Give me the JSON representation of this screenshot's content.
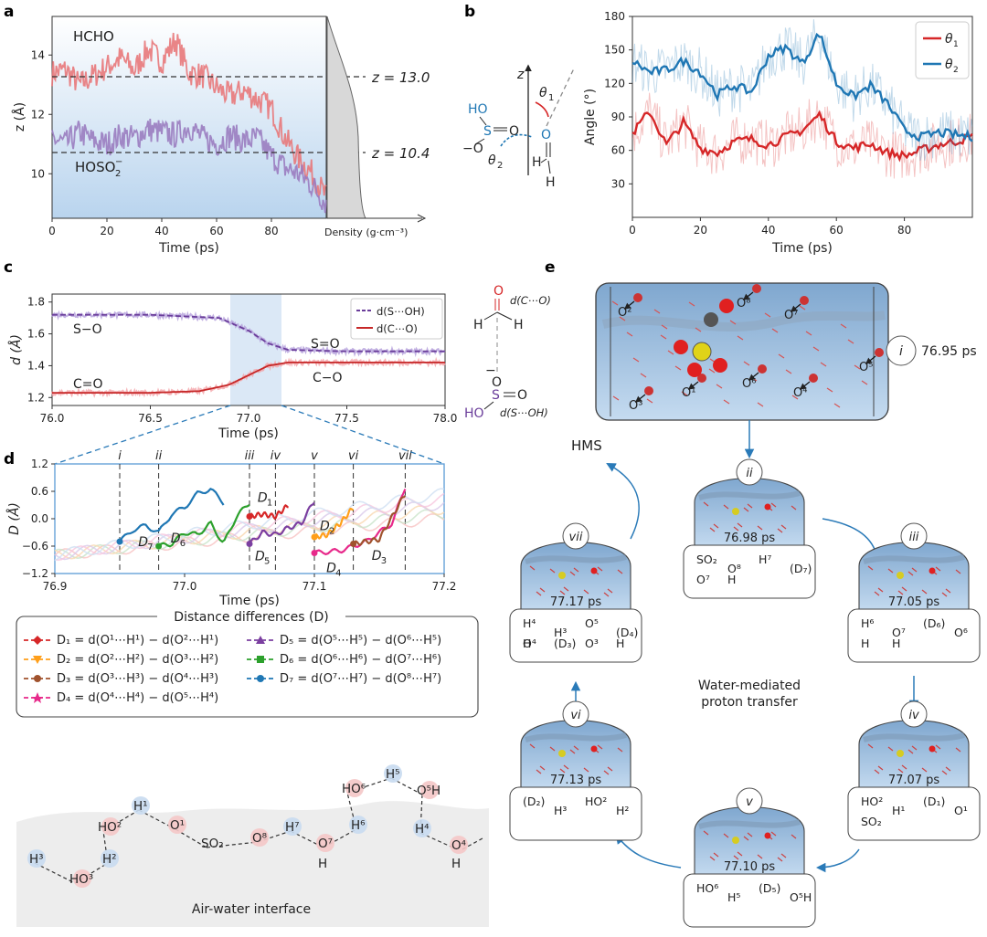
{
  "colors": {
    "hcho": "#e8787a",
    "hoso2": "#9a7cc0",
    "theta1": "#d62728",
    "theta2": "#1f77b4",
    "band_blue": "#c7ddf2",
    "ring_pink": "#f4c6c6",
    "ring_blue": "#c8daef",
    "arrow_blue": "#2a7ab8",
    "interface_gray": "#ededed"
  },
  "panel_labels": [
    "a",
    "b",
    "c",
    "d",
    "e"
  ],
  "panel_a": {
    "ylabel": "z (Å)",
    "xlabel": "Time (ps)",
    "density_label": "Density (g·cm⁻³)",
    "yticks": [
      "10",
      "12",
      "14"
    ],
    "xticks": [
      "0",
      "20",
      "40",
      "60",
      "80"
    ],
    "label_hcho": "HCHO",
    "label_hoso2": "HOSO",
    "label_hoso2_sub": "2",
    "label_hoso2_sup": "−",
    "z_high": "z = 13.0",
    "z_low": "z = 10.4"
  },
  "panel_b_scheme": {
    "atoms": [
      "HO",
      "S",
      "O",
      "−O",
      "O",
      "H",
      "H"
    ],
    "axis": "z",
    "theta1": "θ",
    "theta1_sub": "1",
    "theta2": "θ",
    "theta2_sub": "2"
  },
  "panel_b": {
    "ylabel": "Angle (°)",
    "xlabel": "Time (ps)",
    "yticks": [
      "30",
      "60",
      "90",
      "120",
      "150",
      "180"
    ],
    "xticks": [
      "0",
      "20",
      "40",
      "60",
      "80"
    ],
    "legend": [
      {
        "name": "θ",
        "sub": "1"
      },
      {
        "name": "θ",
        "sub": "2"
      }
    ]
  },
  "panel_c": {
    "ylabel": "d (Å)",
    "xlabel": "Time (ps)",
    "yticks": [
      "1.2",
      "1.4",
      "1.6",
      "1.8"
    ],
    "xticks": [
      "76.0",
      "76.5",
      "77.0",
      "77.5",
      "78.0"
    ],
    "legend": [
      "d(S⋯OH)",
      "d(C⋯O)"
    ],
    "annotations": [
      "S−O",
      "S=O",
      "C=O",
      "C−O"
    ],
    "scheme_labels": [
      "d(C⋯O)",
      "d(S⋯OH)"
    ],
    "scheme_atoms": [
      "O",
      "H",
      "H",
      "O",
      "−",
      "S",
      "O",
      "HO"
    ]
  },
  "panel_d": {
    "ylabel": "D (Å)",
    "xlabel": "Time (ps)",
    "yticks": [
      "−1.2",
      "−0.6",
      "0.0",
      "0.6",
      "1.2"
    ],
    "xticks": [
      "76.9",
      "77.0",
      "77.1",
      "77.2"
    ],
    "event_labels": [
      "i",
      "ii",
      "iii",
      "iv",
      "v",
      "vi",
      "vii"
    ],
    "curve_labels": [
      {
        "base": "D",
        "sub": "7"
      },
      {
        "base": "D",
        "sub": "6"
      },
      {
        "base": "D",
        "sub": "1"
      },
      {
        "base": "D",
        "sub": "5"
      },
      {
        "base": "D",
        "sub": "2"
      },
      {
        "base": "D",
        "sub": "4"
      },
      {
        "base": "D",
        "sub": "3"
      }
    ]
  },
  "legend_box": {
    "title": "Distance differences (D)",
    "entries": [
      {
        "lhs": "D₁ = d(O¹⋯H¹) − d(O²⋯H¹)",
        "color": "#d62728",
        "marker": "diamond"
      },
      {
        "lhs": "D₂ = d(O²⋯H²) − d(O³⋯H²)",
        "color": "#ff9f1a",
        "marker": "tri-down"
      },
      {
        "lhs": "D₃ = d(O³⋯H³) − d(O⁴⋯H³)",
        "color": "#a0522d",
        "marker": "circle"
      },
      {
        "lhs": "D₄ = d(O⁴⋯H⁴) − d(O⁵⋯H⁴)",
        "color": "#e7298a",
        "marker": "star"
      },
      {
        "lhs": "D₅ = d(O⁵⋯H⁵) − d(O⁶⋯H⁵)",
        "color": "#7b3fa0",
        "marker": "tri-up"
      },
      {
        "lhs": "D₆ = d(O⁶⋯H⁶) − d(O⁷⋯H⁶)",
        "color": "#2ca02c",
        "marker": "square"
      },
      {
        "lhs": "D₇ = d(O⁷⋯H⁷) − d(O⁸⋯H⁷)",
        "color": "#1f77b4",
        "marker": "circle"
      }
    ]
  },
  "interface_scheme": {
    "title": "Air-water interface",
    "nodes": [
      "H³",
      "HO³",
      "H²",
      "HO²",
      "H¹",
      "O¹",
      "SO₂",
      "O⁸",
      "H⁷",
      "O⁷",
      "H",
      "H⁶",
      "HO⁶",
      "H⁵",
      "O⁵H",
      "H⁴",
      "O⁴",
      "H"
    ]
  },
  "panel_e": {
    "main_label": "i",
    "main_time": "76.95 ps",
    "main_atoms": [
      "O²",
      "O⁸",
      "O⁷",
      "O¹",
      "O³",
      "O⁶",
      "O⁵",
      "O⁴"
    ],
    "hms": "HMS",
    "center_text": [
      "Water-mediated",
      "proton transfer"
    ],
    "snapshots": [
      {
        "id": "ii",
        "time": "76.98 ps",
        "scheme": [
          "SO₂",
          "O⁸",
          "H⁷",
          "(D₇)",
          "O⁷",
          "H"
        ]
      },
      {
        "id": "iii",
        "time": "77.05 ps",
        "scheme": [
          "H⁶",
          "O⁷",
          "(D₆)",
          "O⁶",
          "H",
          "H"
        ]
      },
      {
        "id": "iv",
        "time": "77.07 ps",
        "scheme": [
          "HO²",
          "H¹",
          "(D₁)",
          "O¹",
          "SO₂"
        ]
      },
      {
        "id": "v",
        "time": "77.10 ps",
        "scheme": [
          "HO⁶",
          "H⁵",
          "(D₅)",
          "O⁵H"
        ]
      },
      {
        "id": "vi",
        "time": "77.13 ps",
        "scheme": [
          "(D₂)",
          "H³",
          "HO²",
          "H²"
        ]
      },
      {
        "id": "vii",
        "time": "77.17 ps",
        "scheme": [
          "H⁴",
          "H³",
          "O⁵",
          "(D₄)",
          "O⁴",
          "(D₃)",
          "O³",
          "H",
          "H"
        ]
      }
    ]
  },
  "chart_data": [
    {
      "type": "line",
      "panel": "a",
      "title": "",
      "xlabel": "Time (ps)",
      "ylabel": "z (Å)",
      "xlim": [
        0,
        100
      ],
      "ylim": [
        8.5,
        15.3
      ],
      "hlines": [
        13.0,
        10.4
      ],
      "series": [
        {
          "name": "HCHO",
          "x": [
            0,
            5,
            10,
            15,
            20,
            25,
            30,
            35,
            40,
            45,
            50,
            55,
            60,
            65,
            70,
            75,
            80,
            85,
            90,
            95,
            100
          ],
          "values": [
            13.4,
            13.5,
            13.0,
            13.3,
            13.6,
            13.9,
            13.5,
            14.2,
            13.8,
            14.5,
            13.4,
            13.3,
            12.9,
            12.6,
            12.8,
            12.5,
            12.2,
            11.2,
            10.5,
            10.0,
            9.2
          ]
        },
        {
          "name": "HOSO2-",
          "x": [
            0,
            5,
            10,
            15,
            20,
            25,
            30,
            35,
            40,
            45,
            50,
            55,
            60,
            65,
            70,
            75,
            80,
            85,
            90,
            95,
            100
          ],
          "values": [
            11.2,
            11.0,
            11.4,
            11.1,
            11.0,
            11.3,
            11.2,
            11.5,
            11.4,
            11.3,
            11.6,
            11.2,
            11.0,
            11.3,
            11.1,
            11.2,
            10.6,
            10.2,
            10.0,
            9.6,
            9.0
          ]
        }
      ]
    },
    {
      "type": "line",
      "panel": "b",
      "title": "",
      "xlabel": "Time (ps)",
      "ylabel": "Angle (°)",
      "xlim": [
        0,
        100
      ],
      "ylim": [
        0,
        180
      ],
      "series": [
        {
          "name": "θ1",
          "x": [
            0,
            5,
            10,
            15,
            20,
            25,
            30,
            35,
            40,
            45,
            50,
            55,
            60,
            65,
            70,
            75,
            80,
            85,
            90,
            95,
            100
          ],
          "values": [
            75,
            95,
            65,
            85,
            62,
            58,
            68,
            70,
            65,
            72,
            78,
            92,
            68,
            62,
            66,
            58,
            55,
            60,
            65,
            68,
            72
          ]
        },
        {
          "name": "θ2",
          "x": [
            0,
            5,
            10,
            15,
            20,
            25,
            30,
            35,
            40,
            45,
            50,
            55,
            60,
            65,
            70,
            75,
            80,
            85,
            90,
            95,
            100
          ],
          "values": [
            140,
            130,
            132,
            140,
            130,
            110,
            118,
            112,
            145,
            152,
            138,
            165,
            120,
            108,
            118,
            102,
            78,
            72,
            76,
            74,
            72
          ]
        }
      ]
    },
    {
      "type": "line",
      "panel": "c",
      "title": "",
      "xlabel": "Time (ps)",
      "ylabel": "d (Å)",
      "xlim": [
        76.0,
        78.0
      ],
      "ylim": [
        1.15,
        1.85
      ],
      "highlight_x": [
        76.9,
        77.15
      ],
      "series": [
        {
          "name": "d(S⋯OH)",
          "x": [
            76.0,
            76.5,
            76.85,
            77.0,
            77.1,
            77.2,
            77.5,
            78.0
          ],
          "values": [
            1.72,
            1.72,
            1.7,
            1.62,
            1.54,
            1.5,
            1.49,
            1.49
          ]
        },
        {
          "name": "d(C⋯O)",
          "x": [
            76.0,
            76.5,
            76.75,
            76.9,
            77.0,
            77.1,
            77.2,
            77.5,
            78.0
          ],
          "values": [
            1.23,
            1.23,
            1.24,
            1.28,
            1.34,
            1.4,
            1.42,
            1.42,
            1.42
          ]
        }
      ]
    },
    {
      "type": "line",
      "panel": "d",
      "title": "",
      "xlabel": "Time (ps)",
      "ylabel": "D (Å)",
      "xlim": [
        76.9,
        77.2
      ],
      "ylim": [
        -1.2,
        1.2
      ],
      "event_times": [
        76.95,
        76.98,
        77.05,
        77.07,
        77.1,
        77.13,
        77.17
      ],
      "series": [
        {
          "name": "D7",
          "x": [
            76.95,
            76.96,
            76.97,
            76.98,
            76.99,
            77.0,
            77.01,
            77.02,
            77.03
          ],
          "values": [
            -0.5,
            -0.25,
            -0.15,
            -0.3,
            0.1,
            0.25,
            0.55,
            0.65,
            0.35
          ]
        },
        {
          "name": "D6",
          "x": [
            76.98,
            76.99,
            77.0,
            77.01,
            77.02,
            77.03,
            77.04,
            77.05
          ],
          "values": [
            -0.6,
            -0.55,
            -0.3,
            -0.35,
            -0.1,
            -0.55,
            0.05,
            0.35
          ]
        },
        {
          "name": "D1",
          "x": [
            77.05,
            77.06,
            77.07,
            77.08
          ],
          "values": [
            0.05,
            0.1,
            0.05,
            0.3
          ]
        },
        {
          "name": "D5",
          "x": [
            77.05,
            77.06,
            77.07,
            77.08,
            77.09,
            77.1
          ],
          "values": [
            -0.55,
            -0.3,
            -0.35,
            -0.2,
            -0.1,
            0.4
          ]
        },
        {
          "name": "D2",
          "x": [
            77.1,
            77.11,
            77.12,
            77.13
          ],
          "values": [
            -0.4,
            -0.35,
            -0.1,
            0.25
          ]
        },
        {
          "name": "D4",
          "x": [
            77.1,
            77.12,
            77.14,
            77.16,
            77.17
          ],
          "values": [
            -0.75,
            -0.7,
            -0.5,
            -0.1,
            0.7
          ]
        },
        {
          "name": "D3",
          "x": [
            77.13,
            77.15,
            77.17
          ],
          "values": [
            -0.55,
            -0.45,
            0.55
          ]
        }
      ]
    }
  ]
}
